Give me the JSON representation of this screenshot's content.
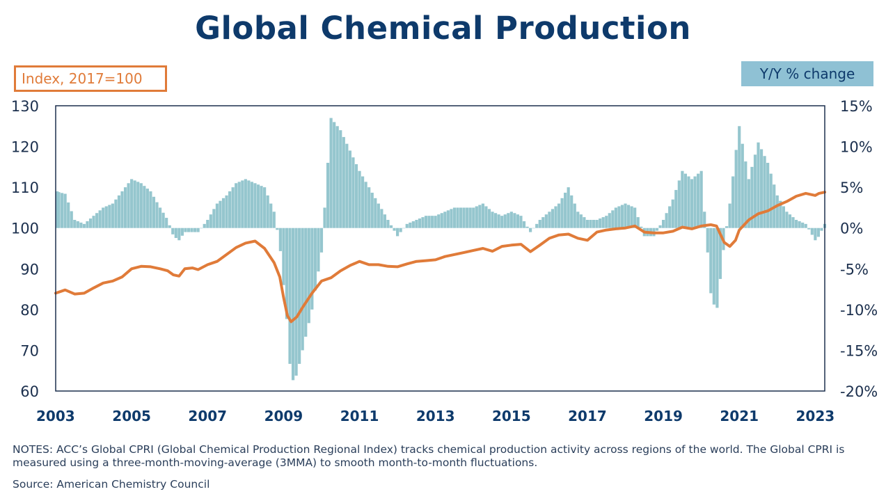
{
  "title": "Global Chemical Production",
  "left_axis_badge": "Index, 2017=100",
  "right_axis_badge": "Y/Y % change",
  "notes": "NOTES: ACC’s Global CPRI (Global Chemical Production Regional Index) tracks chemical production activity across regions of the world. The Global CPRI is measured using a three-month-moving-average (3MMA) to smooth month-to-month fluctuations.",
  "source": "Source: American Chemistry Council",
  "colors": {
    "title": "#0e3a6b",
    "index_line": "#e07b39",
    "yoy_bars": "#95c6ce",
    "badge_bg": "#8fc1d4"
  },
  "chart_data": {
    "type": "bar+line",
    "x_start": 2003.0,
    "x_end": 2023.25,
    "x_tick_labels": [
      "2003",
      "2005",
      "2007",
      "2009",
      "2011",
      "2013",
      "2015",
      "2017",
      "2019",
      "2021",
      "2023"
    ],
    "x_tick_values": [
      2003,
      2005,
      2007,
      2009,
      2011,
      2013,
      2015,
      2017,
      2019,
      2021,
      2023
    ],
    "y_left_ticks": [
      "130",
      "120",
      "110",
      "100",
      "90",
      "80",
      "70",
      "60"
    ],
    "y_left_values": [
      130,
      120,
      110,
      100,
      90,
      80,
      70,
      60
    ],
    "y_left_range": [
      60,
      130
    ],
    "y_right_ticks": [
      "15%",
      "10%",
      "5%",
      "0%",
      "-5%",
      "-10%",
      "-15%",
      "-20%"
    ],
    "y_right_values": [
      15,
      10,
      5,
      0,
      -5,
      -10,
      -15,
      -20
    ],
    "y_right_range": [
      -20,
      15
    ],
    "line_series": {
      "name": "Index, 2017=100",
      "axis": "left",
      "points": [
        [
          2003.0,
          84.0
        ],
        [
          2003.25,
          84.8
        ],
        [
          2003.5,
          83.8
        ],
        [
          2003.75,
          84.0
        ],
        [
          2004.0,
          85.3
        ],
        [
          2004.25,
          86.5
        ],
        [
          2004.5,
          87.0
        ],
        [
          2004.75,
          88.0
        ],
        [
          2005.0,
          90.0
        ],
        [
          2005.25,
          90.6
        ],
        [
          2005.5,
          90.5
        ],
        [
          2005.75,
          90.0
        ],
        [
          2005.95,
          89.5
        ],
        [
          2006.1,
          88.5
        ],
        [
          2006.25,
          88.2
        ],
        [
          2006.4,
          90.0
        ],
        [
          2006.6,
          90.2
        ],
        [
          2006.75,
          89.8
        ],
        [
          2007.0,
          91.0
        ],
        [
          2007.25,
          91.8
        ],
        [
          2007.5,
          93.5
        ],
        [
          2007.75,
          95.2
        ],
        [
          2008.0,
          96.3
        ],
        [
          2008.25,
          96.8
        ],
        [
          2008.5,
          95.0
        ],
        [
          2008.75,
          91.5
        ],
        [
          2008.9,
          88.0
        ],
        [
          2009.0,
          83.0
        ],
        [
          2009.1,
          78.5
        ],
        [
          2009.2,
          77.0
        ],
        [
          2009.35,
          78.2
        ],
        [
          2009.5,
          80.5
        ],
        [
          2009.75,
          84.0
        ],
        [
          2010.0,
          87.0
        ],
        [
          2010.25,
          87.8
        ],
        [
          2010.5,
          89.5
        ],
        [
          2010.75,
          90.8
        ],
        [
          2011.0,
          91.8
        ],
        [
          2011.25,
          91.0
        ],
        [
          2011.5,
          91.0
        ],
        [
          2011.75,
          90.6
        ],
        [
          2012.0,
          90.5
        ],
        [
          2012.25,
          91.2
        ],
        [
          2012.5,
          91.8
        ],
        [
          2012.75,
          92.0
        ],
        [
          2013.0,
          92.2
        ],
        [
          2013.25,
          93.0
        ],
        [
          2013.5,
          93.5
        ],
        [
          2013.75,
          94.0
        ],
        [
          2014.0,
          94.5
        ],
        [
          2014.25,
          95.0
        ],
        [
          2014.5,
          94.3
        ],
        [
          2014.75,
          95.5
        ],
        [
          2015.0,
          95.8
        ],
        [
          2015.25,
          96.0
        ],
        [
          2015.5,
          94.2
        ],
        [
          2015.75,
          95.8
        ],
        [
          2016.0,
          97.5
        ],
        [
          2016.25,
          98.3
        ],
        [
          2016.5,
          98.5
        ],
        [
          2016.75,
          97.5
        ],
        [
          2017.0,
          97.0
        ],
        [
          2017.25,
          99.0
        ],
        [
          2017.5,
          99.5
        ],
        [
          2017.75,
          99.8
        ],
        [
          2018.0,
          100.0
        ],
        [
          2018.25,
          100.5
        ],
        [
          2018.5,
          99.0
        ],
        [
          2018.75,
          98.8
        ],
        [
          2019.0,
          98.8
        ],
        [
          2019.25,
          99.2
        ],
        [
          2019.5,
          100.2
        ],
        [
          2019.75,
          99.8
        ],
        [
          2020.0,
          100.5
        ],
        [
          2020.25,
          100.8
        ],
        [
          2020.4,
          100.5
        ],
        [
          2020.6,
          96.5
        ],
        [
          2020.75,
          95.5
        ],
        [
          2020.9,
          97.0
        ],
        [
          2021.0,
          99.5
        ],
        [
          2021.25,
          102.0
        ],
        [
          2021.5,
          103.5
        ],
        [
          2021.75,
          104.2
        ],
        [
          2022.0,
          105.5
        ],
        [
          2022.25,
          106.5
        ],
        [
          2022.5,
          107.8
        ],
        [
          2022.75,
          108.5
        ],
        [
          2023.0,
          108.0
        ],
        [
          2023.1,
          108.5
        ],
        [
          2023.25,
          108.8
        ]
      ]
    },
    "bar_series": {
      "name": "Y/Y % change",
      "axis": "right",
      "points": [
        [
          2003.0,
          4.5
        ],
        [
          2003.25,
          4.2
        ],
        [
          2003.5,
          1.0
        ],
        [
          2003.75,
          0.5
        ],
        [
          2004.0,
          1.5
        ],
        [
          2004.25,
          2.5
        ],
        [
          2004.5,
          3.0
        ],
        [
          2004.75,
          4.5
        ],
        [
          2005.0,
          6.0
        ],
        [
          2005.25,
          5.5
        ],
        [
          2005.5,
          4.5
        ],
        [
          2005.75,
          2.5
        ],
        [
          2005.95,
          1.0
        ],
        [
          2006.1,
          -1.0
        ],
        [
          2006.25,
          -1.5
        ],
        [
          2006.4,
          -0.5
        ],
        [
          2006.6,
          -0.5
        ],
        [
          2006.75,
          -0.5
        ],
        [
          2007.0,
          1.0
        ],
        [
          2007.25,
          3.0
        ],
        [
          2007.5,
          4.0
        ],
        [
          2007.75,
          5.5
        ],
        [
          2008.0,
          6.0
        ],
        [
          2008.25,
          5.5
        ],
        [
          2008.5,
          5.0
        ],
        [
          2008.75,
          2.0
        ],
        [
          2008.9,
          -2.0
        ],
        [
          2009.0,
          -7.0
        ],
        [
          2009.1,
          -12.0
        ],
        [
          2009.2,
          -19.0
        ],
        [
          2009.35,
          -18.0
        ],
        [
          2009.5,
          -15.0
        ],
        [
          2009.75,
          -10.0
        ],
        [
          2010.0,
          -3.0
        ],
        [
          2010.25,
          13.5
        ],
        [
          2010.5,
          12.0
        ],
        [
          2010.75,
          9.5
        ],
        [
          2011.0,
          7.0
        ],
        [
          2011.25,
          5.0
        ],
        [
          2011.5,
          3.0
        ],
        [
          2011.75,
          1.0
        ],
        [
          2012.0,
          -1.0
        ],
        [
          2012.25,
          0.5
        ],
        [
          2012.5,
          1.0
        ],
        [
          2012.75,
          1.5
        ],
        [
          2013.0,
          1.5
        ],
        [
          2013.25,
          2.0
        ],
        [
          2013.5,
          2.5
        ],
        [
          2013.75,
          2.5
        ],
        [
          2014.0,
          2.5
        ],
        [
          2014.25,
          3.0
        ],
        [
          2014.5,
          2.0
        ],
        [
          2014.75,
          1.5
        ],
        [
          2015.0,
          2.0
        ],
        [
          2015.25,
          1.5
        ],
        [
          2015.5,
          -0.5
        ],
        [
          2015.75,
          1.0
        ],
        [
          2016.0,
          2.0
        ],
        [
          2016.25,
          3.0
        ],
        [
          2016.5,
          5.0
        ],
        [
          2016.75,
          2.0
        ],
        [
          2017.0,
          1.0
        ],
        [
          2017.25,
          1.0
        ],
        [
          2017.5,
          1.5
        ],
        [
          2017.75,
          2.5
        ],
        [
          2018.0,
          3.0
        ],
        [
          2018.25,
          2.5
        ],
        [
          2018.5,
          -1.0
        ],
        [
          2018.75,
          -1.0
        ],
        [
          2019.0,
          1.0
        ],
        [
          2019.25,
          3.5
        ],
        [
          2019.5,
          7.0
        ],
        [
          2019.75,
          6.0
        ],
        [
          2020.0,
          7.0
        ],
        [
          2020.25,
          -8.0
        ],
        [
          2020.4,
          -10.5
        ],
        [
          2020.6,
          -2.0
        ],
        [
          2020.75,
          3.0
        ],
        [
          2020.9,
          9.0
        ],
        [
          2021.0,
          12.5
        ],
        [
          2021.25,
          6.0
        ],
        [
          2021.5,
          10.5
        ],
        [
          2021.75,
          8.0
        ],
        [
          2022.0,
          4.0
        ],
        [
          2022.25,
          2.0
        ],
        [
          2022.5,
          1.0
        ],
        [
          2022.75,
          0.5
        ],
        [
          2023.0,
          -1.5
        ],
        [
          2023.1,
          -1.0
        ],
        [
          2023.25,
          0.5
        ]
      ]
    },
    "grid": false,
    "legend": "none"
  }
}
